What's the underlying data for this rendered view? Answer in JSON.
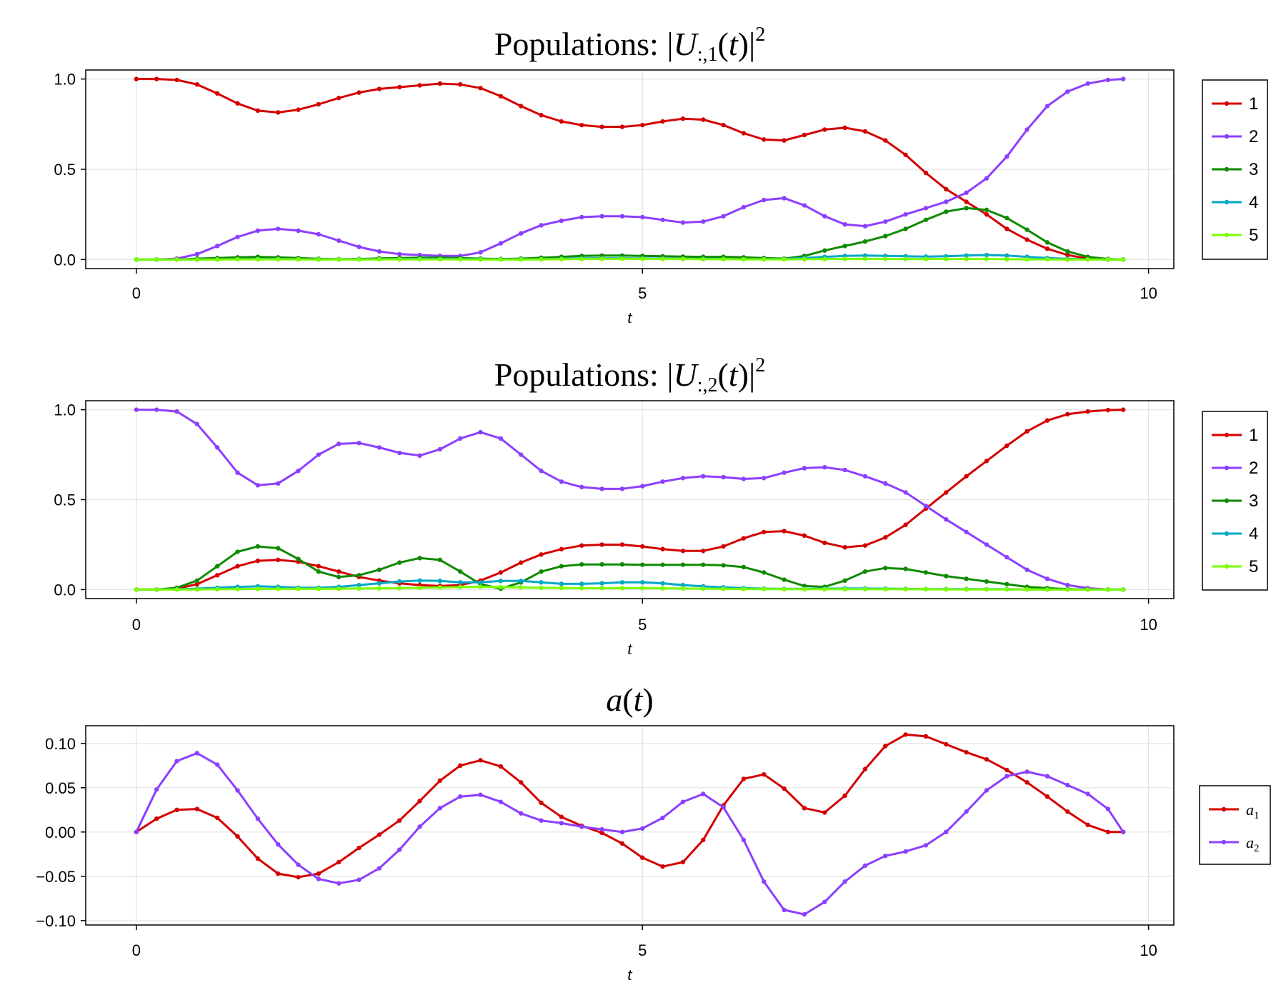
{
  "chart_data": [
    {
      "type": "line",
      "title": "Populations: |U:,1(t)|²",
      "title_parts": {
        "prefix": "Populations: |",
        "var": "U",
        "sub": ":,1",
        "mid": "(",
        "arg": "t",
        "close": ")|",
        "sup": "2"
      },
      "xlabel": "t",
      "ylabel": "",
      "xlim": [
        -0.5,
        10.25
      ],
      "ylim": [
        -0.05,
        1.05
      ],
      "xticks": [
        0,
        5,
        10
      ],
      "xtick_labels": [
        "0",
        "5",
        "10"
      ],
      "yticks": [
        0.0,
        0.5,
        1.0
      ],
      "ytick_labels": [
        "0.0",
        "0.5",
        "1.0"
      ],
      "grid": true,
      "legend_position": "right",
      "x": [
        0.0,
        0.2,
        0.4,
        0.6,
        0.8,
        1.0,
        1.2,
        1.4,
        1.6,
        1.8,
        2.0,
        2.2,
        2.4,
        2.6,
        2.8,
        3.0,
        3.2,
        3.4,
        3.6,
        3.8,
        4.0,
        4.2,
        4.4,
        4.6,
        4.8,
        5.0,
        5.2,
        5.4,
        5.6,
        5.8,
        6.0,
        6.2,
        6.4,
        6.6,
        6.8,
        7.0,
        7.2,
        7.4,
        7.6,
        7.8,
        8.0,
        8.2,
        8.4,
        8.6,
        8.8,
        9.0,
        9.2,
        9.4,
        9.6,
        9.75
      ],
      "series": [
        {
          "name": "1",
          "color": "#d40000",
          "values": [
            1.0,
            1.0,
            0.995,
            0.97,
            0.92,
            0.865,
            0.825,
            0.815,
            0.83,
            0.86,
            0.895,
            0.925,
            0.945,
            0.955,
            0.965,
            0.975,
            0.97,
            0.95,
            0.905,
            0.85,
            0.8,
            0.765,
            0.745,
            0.735,
            0.735,
            0.745,
            0.765,
            0.78,
            0.775,
            0.745,
            0.7,
            0.665,
            0.66,
            0.69,
            0.72,
            0.73,
            0.71,
            0.66,
            0.58,
            0.48,
            0.39,
            0.32,
            0.25,
            0.17,
            0.11,
            0.06,
            0.025,
            0.005,
            0.0,
            0.0
          ]
        },
        {
          "name": "2",
          "color": "#8c3fff",
          "values": [
            0.0,
            0.0,
            0.005,
            0.03,
            0.075,
            0.125,
            0.16,
            0.17,
            0.16,
            0.14,
            0.105,
            0.07,
            0.045,
            0.03,
            0.025,
            0.02,
            0.02,
            0.04,
            0.09,
            0.145,
            0.19,
            0.215,
            0.235,
            0.24,
            0.24,
            0.235,
            0.22,
            0.205,
            0.21,
            0.24,
            0.29,
            0.33,
            0.34,
            0.3,
            0.24,
            0.195,
            0.185,
            0.21,
            0.25,
            0.285,
            0.32,
            0.37,
            0.45,
            0.57,
            0.72,
            0.85,
            0.93,
            0.975,
            0.995,
            1.0
          ]
        },
        {
          "name": "3",
          "color": "#108a00",
          "values": [
            0.0,
            0.0,
            0.0,
            0.005,
            0.008,
            0.012,
            0.015,
            0.012,
            0.008,
            0.004,
            0.002,
            0.003,
            0.006,
            0.008,
            0.01,
            0.01,
            0.008,
            0.005,
            0.003,
            0.005,
            0.01,
            0.015,
            0.02,
            0.022,
            0.022,
            0.02,
            0.018,
            0.016,
            0.015,
            0.015,
            0.012,
            0.008,
            0.005,
            0.02,
            0.05,
            0.075,
            0.1,
            0.13,
            0.17,
            0.22,
            0.265,
            0.285,
            0.275,
            0.23,
            0.165,
            0.095,
            0.045,
            0.015,
            0.003,
            0.0
          ]
        },
        {
          "name": "4",
          "color": "#00a8c6",
          "values": [
            0.0,
            0.0,
            0.0,
            0.0,
            0.001,
            0.002,
            0.003,
            0.003,
            0.002,
            0.001,
            0.001,
            0.001,
            0.002,
            0.003,
            0.004,
            0.004,
            0.003,
            0.002,
            0.001,
            0.001,
            0.002,
            0.004,
            0.006,
            0.007,
            0.007,
            0.006,
            0.005,
            0.004,
            0.004,
            0.003,
            0.002,
            0.002,
            0.003,
            0.008,
            0.015,
            0.02,
            0.022,
            0.02,
            0.018,
            0.016,
            0.018,
            0.022,
            0.025,
            0.022,
            0.015,
            0.008,
            0.004,
            0.001,
            0.0,
            0.0
          ]
        },
        {
          "name": "5",
          "color": "#7cff00",
          "values": [
            0.0,
            0.0,
            0.0,
            0.0,
            0.0,
            0.001,
            0.001,
            0.001,
            0.001,
            0.0,
            0.0,
            0.0,
            0.001,
            0.001,
            0.001,
            0.001,
            0.001,
            0.0,
            0.0,
            0.0,
            0.001,
            0.002,
            0.003,
            0.004,
            0.004,
            0.004,
            0.003,
            0.003,
            0.002,
            0.002,
            0.001,
            0.001,
            0.001,
            0.002,
            0.003,
            0.004,
            0.004,
            0.004,
            0.003,
            0.003,
            0.003,
            0.003,
            0.003,
            0.002,
            0.001,
            0.001,
            0.0,
            0.0,
            0.0,
            0.0
          ]
        }
      ]
    },
    {
      "type": "line",
      "title": "Populations: |U:,2(t)|²",
      "title_parts": {
        "prefix": "Populations: |",
        "var": "U",
        "sub": ":,2",
        "mid": "(",
        "arg": "t",
        "close": ")|",
        "sup": "2"
      },
      "xlabel": "t",
      "ylabel": "",
      "xlim": [
        -0.5,
        10.25
      ],
      "ylim": [
        -0.05,
        1.05
      ],
      "xticks": [
        0,
        5,
        10
      ],
      "xtick_labels": [
        "0",
        "5",
        "10"
      ],
      "yticks": [
        0.0,
        0.5,
        1.0
      ],
      "ytick_labels": [
        "0.0",
        "0.5",
        "1.0"
      ],
      "grid": true,
      "legend_position": "right",
      "x": [
        0.0,
        0.2,
        0.4,
        0.6,
        0.8,
        1.0,
        1.2,
        1.4,
        1.6,
        1.8,
        2.0,
        2.2,
        2.4,
        2.6,
        2.8,
        3.0,
        3.2,
        3.4,
        3.6,
        3.8,
        4.0,
        4.2,
        4.4,
        4.6,
        4.8,
        5.0,
        5.2,
        5.4,
        5.6,
        5.8,
        6.0,
        6.2,
        6.4,
        6.6,
        6.8,
        7.0,
        7.2,
        7.4,
        7.6,
        7.8,
        8.0,
        8.2,
        8.4,
        8.6,
        8.8,
        9.0,
        9.2,
        9.4,
        9.6,
        9.75
      ],
      "series": [
        {
          "name": "1",
          "color": "#d40000",
          "values": [
            0.0,
            0.0,
            0.005,
            0.03,
            0.08,
            0.13,
            0.16,
            0.165,
            0.155,
            0.13,
            0.1,
            0.07,
            0.05,
            0.035,
            0.025,
            0.02,
            0.025,
            0.05,
            0.095,
            0.15,
            0.195,
            0.225,
            0.245,
            0.25,
            0.25,
            0.24,
            0.225,
            0.215,
            0.215,
            0.24,
            0.285,
            0.32,
            0.325,
            0.3,
            0.26,
            0.235,
            0.245,
            0.29,
            0.36,
            0.45,
            0.54,
            0.63,
            0.715,
            0.8,
            0.88,
            0.94,
            0.975,
            0.99,
            0.998,
            1.0
          ]
        },
        {
          "name": "2",
          "color": "#8c3fff",
          "values": [
            1.0,
            1.0,
            0.99,
            0.92,
            0.79,
            0.65,
            0.58,
            0.59,
            0.66,
            0.75,
            0.81,
            0.815,
            0.79,
            0.76,
            0.745,
            0.78,
            0.84,
            0.875,
            0.84,
            0.75,
            0.66,
            0.6,
            0.57,
            0.56,
            0.56,
            0.575,
            0.6,
            0.62,
            0.63,
            0.625,
            0.615,
            0.62,
            0.65,
            0.675,
            0.68,
            0.665,
            0.63,
            0.59,
            0.54,
            0.465,
            0.39,
            0.32,
            0.25,
            0.18,
            0.11,
            0.06,
            0.025,
            0.008,
            0.001,
            0.0
          ]
        },
        {
          "name": "3",
          "color": "#108a00",
          "values": [
            0.0,
            0.0,
            0.01,
            0.05,
            0.13,
            0.21,
            0.24,
            0.23,
            0.17,
            0.1,
            0.07,
            0.08,
            0.11,
            0.15,
            0.175,
            0.165,
            0.1,
            0.03,
            0.005,
            0.04,
            0.1,
            0.13,
            0.14,
            0.14,
            0.14,
            0.138,
            0.138,
            0.138,
            0.138,
            0.135,
            0.125,
            0.095,
            0.055,
            0.02,
            0.015,
            0.05,
            0.1,
            0.12,
            0.115,
            0.095,
            0.075,
            0.06,
            0.045,
            0.03,
            0.015,
            0.008,
            0.003,
            0.001,
            0.0,
            0.0
          ]
        },
        {
          "name": "4",
          "color": "#00a8c6",
          "values": [
            0.0,
            0.0,
            0.002,
            0.005,
            0.01,
            0.015,
            0.018,
            0.015,
            0.01,
            0.01,
            0.015,
            0.025,
            0.035,
            0.045,
            0.05,
            0.048,
            0.04,
            0.04,
            0.048,
            0.048,
            0.04,
            0.032,
            0.032,
            0.035,
            0.04,
            0.04,
            0.035,
            0.025,
            0.018,
            0.012,
            0.008,
            0.005,
            0.004,
            0.004,
            0.005,
            0.006,
            0.006,
            0.005,
            0.004,
            0.003,
            0.003,
            0.003,
            0.002,
            0.002,
            0.001,
            0.001,
            0.0,
            0.0,
            0.0,
            0.0
          ]
        },
        {
          "name": "5",
          "color": "#7cff00",
          "values": [
            0.0,
            0.0,
            0.0,
            0.001,
            0.002,
            0.003,
            0.004,
            0.004,
            0.004,
            0.004,
            0.005,
            0.006,
            0.007,
            0.008,
            0.01,
            0.012,
            0.014,
            0.015,
            0.014,
            0.012,
            0.01,
            0.009,
            0.008,
            0.008,
            0.008,
            0.008,
            0.007,
            0.006,
            0.005,
            0.004,
            0.003,
            0.003,
            0.002,
            0.002,
            0.002,
            0.002,
            0.002,
            0.002,
            0.002,
            0.002,
            0.001,
            0.001,
            0.001,
            0.001,
            0.001,
            0.0,
            0.0,
            0.0,
            0.0,
            0.0
          ]
        }
      ]
    },
    {
      "type": "line",
      "title": "a(t)",
      "title_parts": {
        "prefix": "",
        "var": "a",
        "sub": "",
        "mid": "(",
        "arg": "t",
        "close": ")",
        "sup": ""
      },
      "xlabel": "t",
      "ylabel": "",
      "xlim": [
        -0.5,
        10.25
      ],
      "ylim": [
        -0.105,
        0.12
      ],
      "xticks": [
        0,
        5,
        10
      ],
      "xtick_labels": [
        "0",
        "5",
        "10"
      ],
      "yticks": [
        -0.1,
        -0.05,
        0.0,
        0.05,
        0.1
      ],
      "ytick_labels": [
        "−0.10",
        "−0.05",
        "0.00",
        "0.05",
        "0.10"
      ],
      "grid": true,
      "legend_position": "right",
      "x": [
        0.0,
        0.2,
        0.4,
        0.6,
        0.8,
        1.0,
        1.2,
        1.4,
        1.6,
        1.8,
        2.0,
        2.2,
        2.4,
        2.6,
        2.8,
        3.0,
        3.2,
        3.4,
        3.6,
        3.8,
        4.0,
        4.2,
        4.4,
        4.6,
        4.8,
        5.0,
        5.2,
        5.4,
        5.6,
        5.8,
        6.0,
        6.2,
        6.4,
        6.6,
        6.8,
        7.0,
        7.2,
        7.4,
        7.6,
        7.8,
        8.0,
        8.2,
        8.4,
        8.6,
        8.8,
        9.0,
        9.2,
        9.4,
        9.6,
        9.75
      ],
      "series": [
        {
          "name": "a",
          "sub": "1",
          "color": "#d40000",
          "values": [
            0.0,
            0.015,
            0.025,
            0.026,
            0.016,
            -0.005,
            -0.03,
            -0.047,
            -0.051,
            -0.047,
            -0.034,
            -0.018,
            -0.003,
            0.013,
            0.035,
            0.058,
            0.075,
            0.081,
            0.074,
            0.056,
            0.033,
            0.017,
            0.007,
            -0.001,
            -0.013,
            -0.029,
            -0.039,
            -0.034,
            -0.009,
            0.03,
            0.06,
            0.065,
            0.049,
            0.027,
            0.022,
            0.041,
            0.071,
            0.097,
            0.11,
            0.108,
            0.099,
            0.09,
            0.082,
            0.07,
            0.056,
            0.04,
            0.023,
            0.008,
            0.0,
            0.0
          ]
        },
        {
          "name": "a",
          "sub": "2",
          "color": "#8c3fff",
          "values": [
            0.0,
            0.048,
            0.08,
            0.089,
            0.076,
            0.047,
            0.015,
            -0.014,
            -0.037,
            -0.053,
            -0.058,
            -0.054,
            -0.041,
            -0.02,
            0.006,
            0.027,
            0.04,
            0.042,
            0.034,
            0.021,
            0.013,
            0.01,
            0.006,
            0.003,
            0.0,
            0.004,
            0.016,
            0.034,
            0.043,
            0.028,
            -0.009,
            -0.056,
            -0.088,
            -0.093,
            -0.079,
            -0.056,
            -0.038,
            -0.027,
            -0.022,
            -0.015,
            0.0,
            0.023,
            0.047,
            0.063,
            0.068,
            0.063,
            0.053,
            0.043,
            0.026,
            0.0
          ]
        }
      ]
    }
  ]
}
